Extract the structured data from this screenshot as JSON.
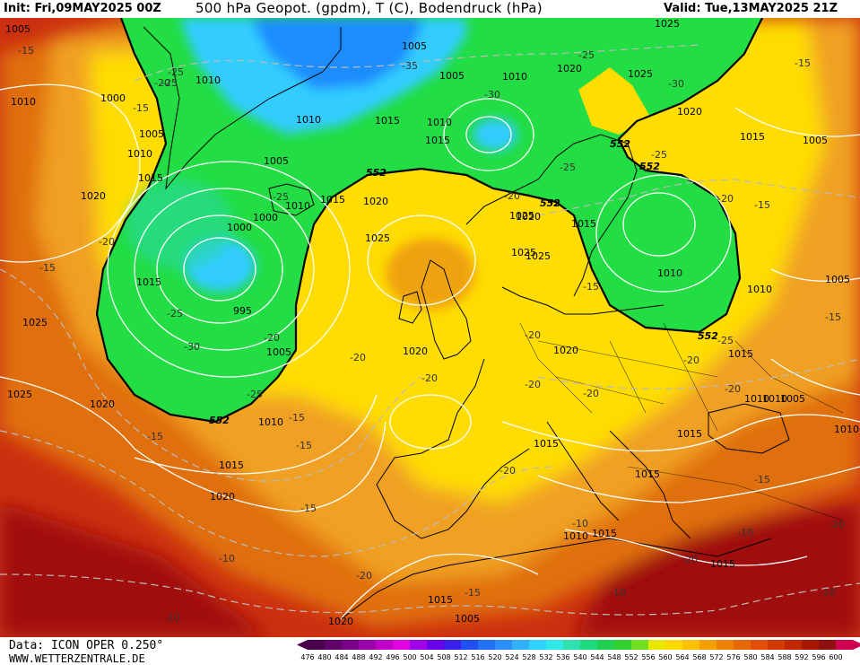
{
  "header": {
    "init": "Init: Fri,09MAY2025 00Z",
    "title": "500 hPa Geopot. (gpdm), T (C), Bodendruck (hPa)",
    "valid": "Valid: Tue,13MAY2025 21Z"
  },
  "footer": {
    "data_source": "Data: ICON OPER 0.250°",
    "website": "WWW.WETTERZENTRALE.DE"
  },
  "colors": {
    "blue": "#1a8cff",
    "cyan": "#33ccff",
    "green": "#22dd44",
    "yellow": "#ffdd00",
    "orange": "#f0a020",
    "dark_orange": "#e07010",
    "red": "#cc3010",
    "dark_red": "#a01010",
    "isobar": "#ffffff",
    "isotherm": "#bbbbbb",
    "geopot_552": "#000000"
  },
  "legend": {
    "ticks": [
      "476",
      "480",
      "484",
      "488",
      "492",
      "496",
      "500",
      "504",
      "508",
      "512",
      "516",
      "520",
      "524",
      "528",
      "532",
      "536",
      "540",
      "544",
      "548",
      "552",
      "556",
      "560",
      "564",
      "568",
      "572",
      "576",
      "580",
      "584",
      "588",
      "592",
      "596",
      "600"
    ],
    "colors": [
      "#4a004a",
      "#60006a",
      "#7a008a",
      "#9a00aa",
      "#c000c8",
      "#e000e0",
      "#a000e8",
      "#6a00e8",
      "#3a20e8",
      "#2050f0",
      "#2070f8",
      "#2a90ff",
      "#30b0ff",
      "#30d0ff",
      "#30e8e8",
      "#30e0b0",
      "#20d880",
      "#20d050",
      "#30d030",
      "#70e020",
      "#e8e800",
      "#ffd800",
      "#ffc000",
      "#f8a000",
      "#f08000",
      "#e86800",
      "#e05000",
      "#d03c00",
      "#c02800",
      "#a81800",
      "#901010",
      "#d00050"
    ]
  },
  "map_labels": {
    "pressure": [
      "1005",
      "1010",
      "1000",
      "1005",
      "1010",
      "1015",
      "1020",
      "1015",
      "1005",
      "1010",
      "1010",
      "1015",
      "1020",
      "1025",
      "1025",
      "1020",
      "1025",
      "1015",
      "1010",
      "1005",
      "1015",
      "995",
      "1000",
      "1005",
      "1010",
      "1015",
      "1020",
      "1025",
      "1010",
      "1005",
      "1025",
      "1020",
      "1015",
      "1015",
      "1010",
      "1020",
      "1015",
      "1010",
      "1005",
      "1025",
      "1005",
      "1020",
      "1015",
      "1010",
      "1000",
      "1025",
      "1020",
      "1015",
      "1015",
      "1010",
      "1020",
      "1015",
      "1005",
      "1020",
      "1010",
      "1015",
      "1010",
      "1005",
      "1015",
      "1025",
      "1010"
    ],
    "temperature": [
      "-25",
      "-20",
      "-15",
      "-35",
      "-30",
      "-25",
      "-20",
      "-25",
      "-30",
      "-25",
      "-20",
      "-15",
      "-20",
      "-25",
      "-20",
      "-15",
      "-20",
      "-25",
      "-30",
      "-25",
      "-20",
      "-20",
      "-25",
      "-20",
      "-15",
      "-20",
      "-15",
      "-20",
      "-20",
      "-15",
      "-15",
      "-10",
      "-15",
      "-20",
      "-10",
      "-15",
      "-10",
      "-20",
      "-10",
      "-15",
      "-20",
      "-10",
      "-10",
      "-15",
      "-25",
      "-20",
      "-15",
      "-15"
    ],
    "geopot_552": [
      "552",
      "552",
      "552",
      "552",
      "552",
      "552"
    ]
  }
}
